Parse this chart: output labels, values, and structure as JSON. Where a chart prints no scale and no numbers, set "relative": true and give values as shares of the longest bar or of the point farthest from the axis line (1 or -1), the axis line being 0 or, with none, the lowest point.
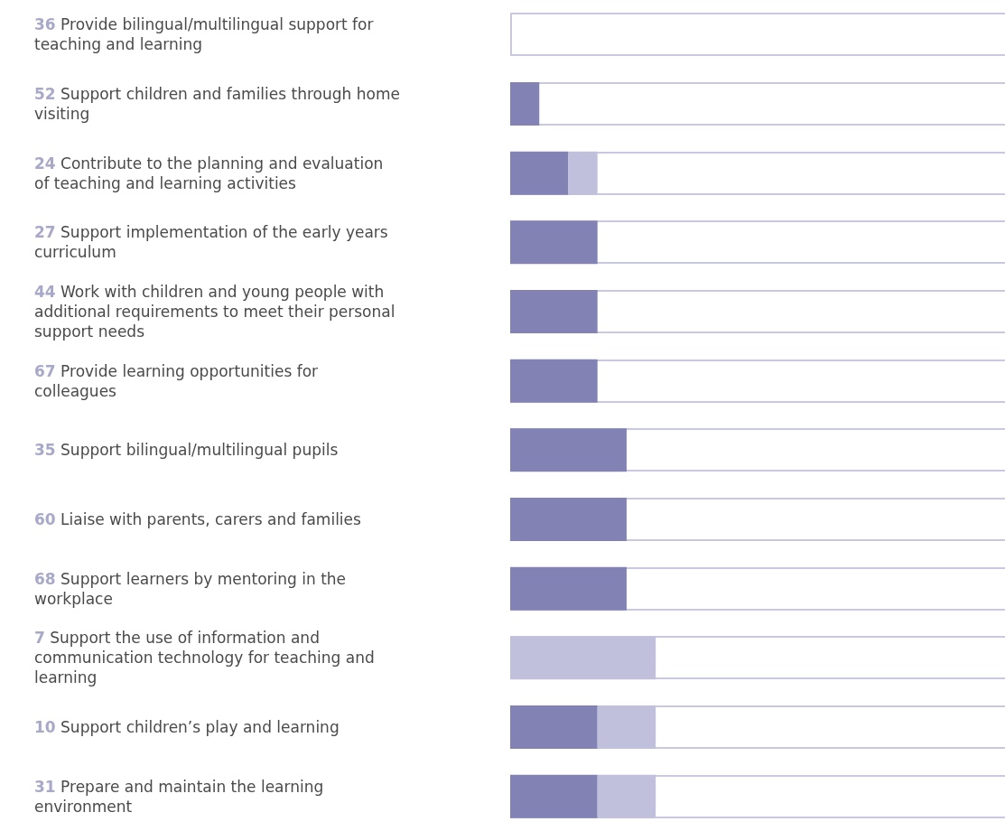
{
  "chart_data": {
    "type": "bar",
    "orientation": "horizontal",
    "stacked": true,
    "relative": true,
    "categories": [
      "36 Provide bilingual/multilingual support for teaching and learning",
      "52 Support children and families through home visiting",
      "24 Contribute to the planning and evaluation of teaching and learning activities",
      "27 Support implementation of the early years curriculum",
      "44 Work with children and young people with additional requirements to meet their personal support needs",
      "67 Provide learning opportunities for colleagues",
      "35 Support bilingual/multilingual pupils",
      "60 Liaise with parents, carers and families",
      "68 Support learners by mentoring in the workplace",
      "7 Support the use of information and communication technology for teaching and learning",
      "10 Support children’s play and learning",
      "31 Prepare and maintain the learning environment"
    ],
    "series": [
      {
        "color": "#8282b4",
        "values": [
          0,
          0.2,
          0.4,
          0.6,
          0.6,
          0.6,
          0.8,
          0.8,
          0.8,
          0,
          0.6,
          0.6
        ]
      },
      {
        "color": "#c0c0dc",
        "values": [
          0,
          0,
          0.2,
          0,
          0,
          0,
          0,
          0,
          0,
          1,
          0.4,
          0.4
        ]
      }
    ]
  }
}
